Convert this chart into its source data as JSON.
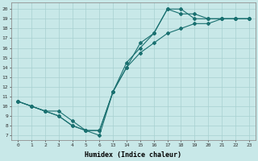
{
  "xlabel": "Humidex (Indice chaleur)",
  "background_color": "#c8e8e8",
  "grid_color": "#a8d0d0",
  "line_color": "#1a7070",
  "x_labels": [
    "0",
    "1",
    "2",
    "3",
    "4",
    "5",
    "6",
    "13",
    "14",
    "15",
    "16",
    "17",
    "18",
    "19",
    "20",
    "21",
    "22",
    "23"
  ],
  "x_indices": [
    0,
    1,
    2,
    3,
    4,
    5,
    6,
    7,
    8,
    9,
    10,
    11,
    12,
    13,
    14,
    15,
    16,
    17
  ],
  "ylim": [
    6.5,
    20.7
  ],
  "lines": [
    {
      "xi": [
        0,
        1,
        2,
        3,
        4,
        5,
        6,
        7,
        8,
        9,
        10,
        11,
        12,
        13,
        14,
        15,
        16,
        17
      ],
      "y": [
        10.5,
        10.0,
        9.5,
        9.0,
        8.0,
        7.5,
        7.5,
        11.5,
        14.0,
        16.5,
        17.5,
        20.0,
        19.5,
        19.5,
        19.0,
        19.0,
        19.0,
        19.0
      ]
    },
    {
      "xi": [
        0,
        1,
        2,
        3,
        4,
        5,
        6,
        7,
        8,
        9,
        10,
        11,
        12,
        13,
        14,
        15,
        16,
        17
      ],
      "y": [
        10.5,
        10.0,
        9.5,
        9.0,
        8.0,
        7.5,
        7.0,
        11.5,
        14.5,
        16.0,
        17.5,
        20.0,
        20.0,
        19.0,
        19.0,
        19.0,
        19.0,
        19.0
      ]
    },
    {
      "xi": [
        0,
        1,
        2,
        3,
        4,
        5,
        6,
        7,
        8,
        9,
        10,
        11,
        12,
        13,
        14,
        15,
        16,
        17
      ],
      "y": [
        10.5,
        10.0,
        9.5,
        9.5,
        8.5,
        7.5,
        7.5,
        11.5,
        14.0,
        15.5,
        16.5,
        17.5,
        18.0,
        18.5,
        18.5,
        19.0,
        19.0,
        19.0
      ]
    }
  ]
}
